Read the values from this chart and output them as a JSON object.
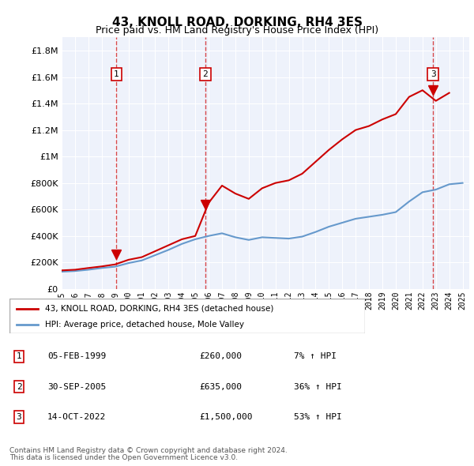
{
  "title": "43, KNOLL ROAD, DORKING, RH4 3ES",
  "subtitle": "Price paid vs. HM Land Registry's House Price Index (HPI)",
  "ylabel_ticks": [
    "£0",
    "£200K",
    "£400K",
    "£600K",
    "£800K",
    "£1M",
    "£1.2M",
    "£1.4M",
    "£1.6M",
    "£1.8M"
  ],
  "ytick_values": [
    0,
    200000,
    400000,
    600000,
    800000,
    1000000,
    1200000,
    1400000,
    1600000,
    1800000
  ],
  "ylim": [
    0,
    1900000
  ],
  "xlim_start": 1995.0,
  "xlim_end": 2025.5,
  "background_color": "#f0f4ff",
  "plot_bg_color": "#f0f4ff",
  "legend_label_red": "43, KNOLL ROAD, DORKING, RH4 3ES (detached house)",
  "legend_label_blue": "HPI: Average price, detached house, Mole Valley",
  "transactions": [
    {
      "num": 1,
      "date": "05-FEB-1999",
      "price": 260000,
      "hpi_pct": "7%",
      "year": 1999.1
    },
    {
      "num": 2,
      "date": "30-SEP-2005",
      "price": 635000,
      "hpi_pct": "36%",
      "year": 2005.75
    },
    {
      "num": 3,
      "date": "14-OCT-2022",
      "price": 1500000,
      "hpi_pct": "53%",
      "year": 2022.79
    }
  ],
  "footer_line1": "Contains HM Land Registry data © Crown copyright and database right 2024.",
  "footer_line2": "This data is licensed under the Open Government Licence v3.0.",
  "red_color": "#cc0000",
  "blue_color": "#6699cc",
  "dashed_color": "#cc0000",
  "hpi_line": {
    "years": [
      1995,
      1996,
      1997,
      1998,
      1999,
      2000,
      2001,
      2002,
      2003,
      2004,
      2005,
      2006,
      2007,
      2008,
      2009,
      2010,
      2011,
      2012,
      2013,
      2014,
      2015,
      2016,
      2017,
      2018,
      2019,
      2020,
      2021,
      2022,
      2023,
      2024,
      2025
    ],
    "values": [
      130000,
      135000,
      145000,
      158000,
      168000,
      195000,
      215000,
      255000,
      295000,
      340000,
      375000,
      400000,
      420000,
      390000,
      370000,
      390000,
      385000,
      380000,
      395000,
      430000,
      470000,
      500000,
      530000,
      545000,
      560000,
      580000,
      660000,
      730000,
      750000,
      790000,
      800000
    ]
  },
  "price_line": {
    "years": [
      1995,
      1996,
      1997,
      1998,
      1999,
      2000,
      2001,
      2002,
      2003,
      2004,
      2005,
      2006,
      2007,
      2008,
      2009,
      2010,
      2011,
      2012,
      2013,
      2014,
      2015,
      2016,
      2017,
      2018,
      2019,
      2020,
      2021,
      2022,
      2023,
      2024
    ],
    "values": [
      140000,
      145000,
      158000,
      170000,
      185000,
      220000,
      240000,
      285000,
      330000,
      375000,
      400000,
      650000,
      780000,
      720000,
      680000,
      760000,
      800000,
      820000,
      870000,
      960000,
      1050000,
      1130000,
      1200000,
      1230000,
      1280000,
      1320000,
      1450000,
      1500000,
      1420000,
      1480000
    ]
  }
}
